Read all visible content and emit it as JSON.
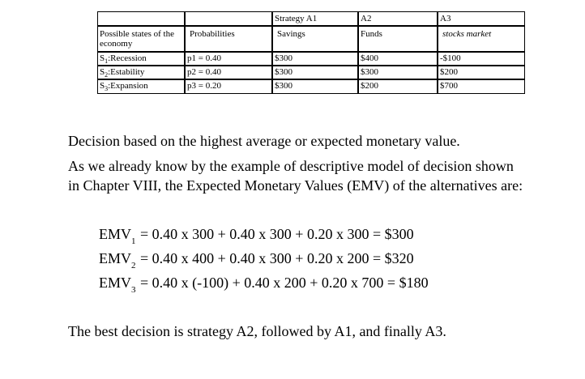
{
  "table": {
    "header_row": [
      "",
      "",
      "Strategy A1",
      "A2",
      "A3"
    ],
    "label_row": [
      "Possible states of the economy",
      "Probabilities",
      "Savings",
      "Funds",
      "stocks market"
    ],
    "rows": [
      {
        "state_prefix": "S",
        "state_sub": "1",
        "state_name": ":Recession",
        "prob": "p1 = 0.40",
        "a1": "$300",
        "a2": "$400",
        "a3": "-$100"
      },
      {
        "state_prefix": "S",
        "state_sub": "2",
        "state_name": ":Estability",
        "prob": "p2 = 0.40",
        "a1": "$300",
        "a2": "$300",
        "a3": "$200"
      },
      {
        "state_prefix": "S",
        "state_sub": "3",
        "state_name": ":Expansion",
        "prob": "p3 = 0.20",
        "a1": "$300",
        "a2": "$200",
        "a3": "$700"
      }
    ]
  },
  "text": {
    "decision_line": "Decision based on the highest average or expected monetary value.",
    "intro_line1": "As we already know by the example of descriptive model of decision shown",
    "intro_line2": "in Chapter VIII, the Expected Monetary Values (EMV) of the alternatives are:",
    "conclusion": "The best decision is strategy A2, followed by A1, and finally A3."
  },
  "equations": [
    {
      "label": "EMV",
      "sub": "1",
      "expr": " = 0.40 x  300 + 0.40 x 300 + 0.20 x 300 =  $300"
    },
    {
      "label": "EMV",
      "sub": "2",
      "expr": " = 0.40 x  400 + 0.40 x 300 + 0.20 x 200 = $320"
    },
    {
      "label": "EMV",
      "sub": "3",
      "expr": " = 0.40 x (-100)  + 0.40 x 200 + 0.20 x 700 =  $180"
    }
  ]
}
